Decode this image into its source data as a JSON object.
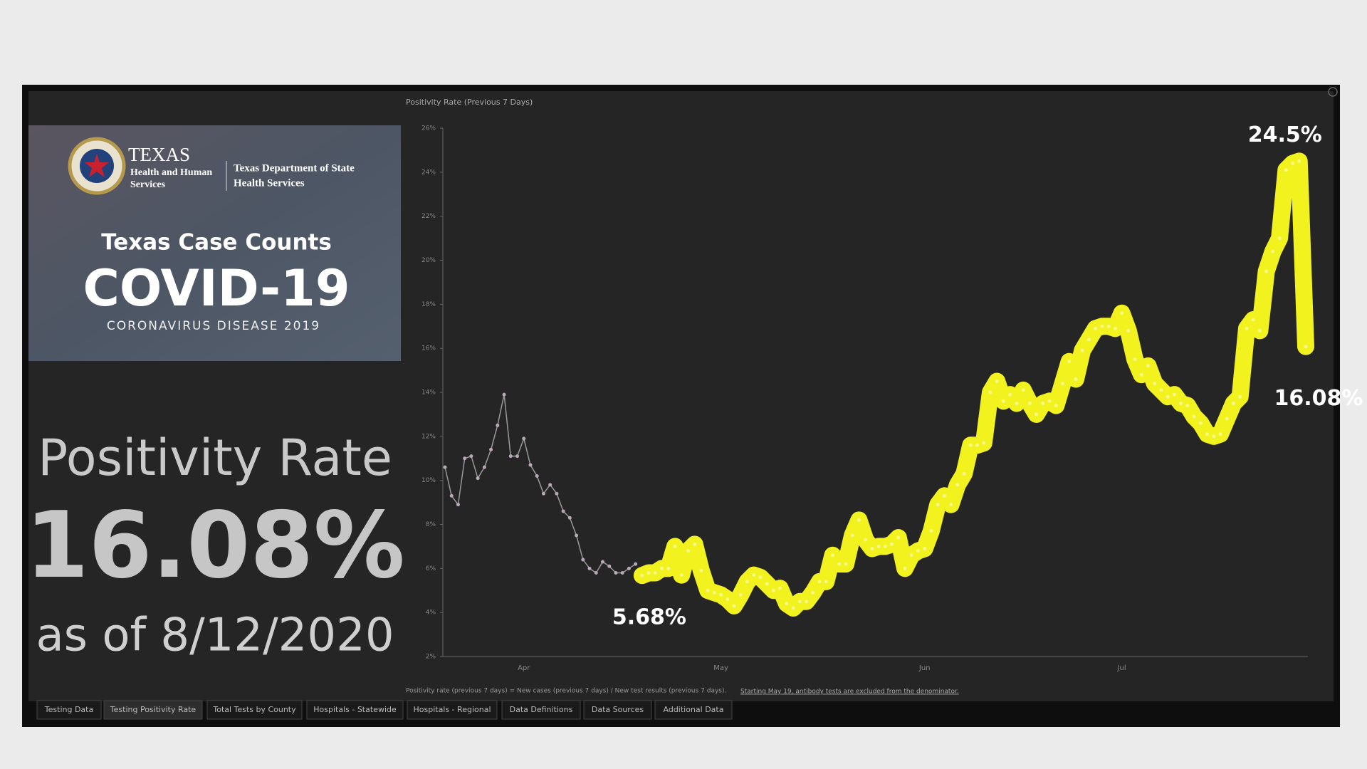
{
  "logo": {
    "agency": "TEXAS",
    "agency_sub": [
      "Health and Human",
      "Services"
    ],
    "department": [
      "Texas Department of State",
      "Health Services"
    ],
    "heading": "Texas Case Counts",
    "title": "COVID-19",
    "subtitle": "CORONAVIRUS DISEASE 2019"
  },
  "summary": {
    "label": "Positivity Rate",
    "value": "16.08%",
    "date": "as of 8/12/2020"
  },
  "tabs": [
    "Testing Data",
    "Testing Positivity Rate",
    "Total Tests by County",
    "Hospitals - Statewide",
    "Hospitals - Regional",
    "Data Definitions",
    "Data Sources",
    "Additional Data"
  ],
  "chart_data": {
    "type": "line",
    "title": "Positivity Rate (Previous 7 Days)",
    "footnote": "Positivity rate (previous 7 days) = New cases (previous 7 days) / New test results (previous 7 days).",
    "footnote_link": "Starting May 19, antibody tests are excluded from the denominator.",
    "ylim": [
      2,
      26
    ],
    "yticks": [
      {
        "value": 2,
        "label": "2%"
      },
      {
        "value": 4,
        "label": "4%"
      },
      {
        "value": 6,
        "label": "6%"
      },
      {
        "value": 8,
        "label": "8%"
      },
      {
        "value": 10,
        "label": "10%"
      },
      {
        "value": 12,
        "label": "12%"
      },
      {
        "value": 14,
        "label": "14%"
      },
      {
        "value": 16,
        "label": "16%"
      },
      {
        "value": 18,
        "label": "18%"
      },
      {
        "value": 20,
        "label": "20%"
      },
      {
        "value": 22,
        "label": "22%"
      },
      {
        "value": 24,
        "label": "24%"
      },
      {
        "value": 26,
        "label": "26%"
      }
    ],
    "categories": [
      null,
      null,
      null,
      null,
      null,
      null,
      null,
      null,
      null,
      null,
      null,
      null,
      "Apr",
      null,
      null,
      null,
      null,
      null,
      null,
      null,
      null,
      null,
      null,
      null,
      null,
      null,
      null,
      null,
      null,
      null,
      null,
      null,
      null,
      null,
      null,
      null,
      null,
      null,
      null,
      null,
      null,
      null,
      "May",
      null,
      null,
      null,
      null,
      null,
      null,
      null,
      null,
      null,
      null,
      null,
      null,
      null,
      null,
      null,
      null,
      null,
      null,
      null,
      null,
      null,
      null,
      null,
      null,
      null,
      null,
      null,
      null,
      null,
      null,
      "Jun",
      null,
      null,
      null,
      null,
      null,
      null,
      null,
      null,
      null,
      null,
      null,
      null,
      null,
      null,
      null,
      null,
      null,
      null,
      null,
      null,
      null,
      null,
      null,
      null,
      null,
      null,
      null,
      null,
      null,
      "Jul",
      null,
      null,
      null,
      null,
      null,
      null,
      null,
      null,
      null,
      null,
      null,
      null,
      null,
      null,
      null,
      null,
      null,
      null,
      null,
      null,
      null,
      null,
      null,
      null,
      null,
      null,
      null,
      null
    ],
    "series": [
      {
        "color": "#9a9a9a",
        "values": [
          10.6,
          9.3,
          8.9,
          11.0,
          11.1,
          10.1,
          10.6,
          11.4,
          12.5,
          13.9,
          11.1,
          11.1,
          11.9,
          10.7,
          10.2,
          9.4,
          9.8,
          9.4,
          8.6,
          8.3,
          7.5,
          6.4,
          6.0,
          5.8,
          6.3,
          6.1,
          5.8,
          5.8,
          6.0,
          6.2,
          null,
          null,
          null,
          null,
          null,
          null,
          null,
          null,
          null,
          null,
          null,
          null,
          null,
          null,
          null,
          null,
          null,
          null,
          null,
          null,
          null,
          null,
          null,
          null,
          null,
          null,
          null,
          null,
          null,
          null,
          null,
          null,
          null,
          null,
          null,
          null,
          null,
          null,
          null,
          null,
          null,
          null,
          null,
          null,
          null,
          null,
          null,
          null,
          null,
          null,
          null,
          null,
          null,
          null,
          null,
          null,
          null,
          null,
          null,
          null,
          null,
          null,
          null,
          null,
          null,
          null,
          null,
          null,
          null,
          null,
          null,
          null,
          null,
          null,
          null,
          null,
          null,
          null,
          null,
          null,
          null,
          null,
          null,
          null,
          null,
          null,
          null,
          null,
          null,
          null,
          null,
          null,
          null,
          null,
          null,
          null,
          null,
          null,
          null,
          null,
          null,
          null
        ]
      },
      {
        "color": "#f2f21e",
        "values": [
          null,
          null,
          null,
          null,
          null,
          null,
          null,
          null,
          null,
          null,
          null,
          null,
          null,
          null,
          null,
          null,
          null,
          null,
          null,
          null,
          null,
          null,
          null,
          null,
          null,
          null,
          null,
          null,
          null,
          null,
          5.68,
          5.8,
          5.8,
          6.0,
          6.0,
          7.0,
          5.7,
          6.8,
          7.1,
          5.9,
          5.0,
          4.9,
          4.8,
          4.6,
          4.3,
          4.8,
          5.4,
          5.7,
          5.6,
          5.3,
          5.0,
          5.1,
          4.4,
          4.2,
          4.5,
          4.5,
          4.9,
          5.4,
          5.4,
          6.6,
          6.2,
          6.2,
          7.5,
          8.2,
          7.3,
          6.9,
          7.0,
          7.0,
          7.1,
          7.4,
          6.0,
          6.6,
          6.8,
          6.9,
          7.7,
          8.9,
          9.3,
          8.9,
          9.8,
          10.3,
          11.6,
          11.6,
          11.7,
          14.0,
          14.5,
          13.6,
          13.9,
          13.5,
          14.1,
          13.5,
          13.0,
          13.5,
          13.6,
          13.4,
          14.4,
          15.4,
          14.6,
          15.9,
          16.4,
          16.9,
          17.0,
          17.0,
          16.9,
          17.6,
          16.8,
          15.5,
          14.8,
          15.2,
          14.4,
          14.1,
          13.8,
          13.9,
          13.5,
          13.4,
          12.9,
          12.6,
          12.1,
          12.0,
          12.1,
          12.8,
          13.5,
          13.8,
          16.9,
          17.3,
          16.8,
          19.5,
          20.4,
          21.0,
          24.1,
          24.4,
          24.5,
          16.08
        ],
        "value_labels": [
          null,
          null,
          null,
          null,
          null,
          null,
          null,
          null,
          null,
          null,
          null,
          null,
          null,
          null,
          null,
          null,
          null,
          null,
          null,
          null,
          null,
          null,
          null,
          null,
          null,
          null,
          null,
          null,
          null,
          null,
          "5.68%",
          null,
          null,
          null,
          null,
          null,
          null,
          null,
          null,
          null,
          null,
          null,
          null,
          null,
          null,
          null,
          null,
          null,
          null,
          null,
          null,
          null,
          null,
          null,
          null,
          null,
          null,
          null,
          null,
          null,
          null,
          null,
          null,
          null,
          null,
          null,
          null,
          null,
          null,
          null,
          null,
          null,
          null,
          null,
          null,
          null,
          null,
          null,
          null,
          null,
          null,
          null,
          null,
          null,
          null,
          null,
          null,
          null,
          null,
          null,
          null,
          null,
          null,
          null,
          null,
          null,
          null,
          null,
          null,
          null,
          null,
          null,
          null,
          null,
          null,
          null,
          null,
          null,
          null,
          null,
          null,
          null,
          null,
          null,
          null,
          null,
          null,
          null,
          null,
          null,
          null,
          null,
          null,
          null,
          null,
          null,
          null,
          null,
          null,
          null,
          "24.5%",
          "16.08%"
        ]
      }
    ]
  }
}
